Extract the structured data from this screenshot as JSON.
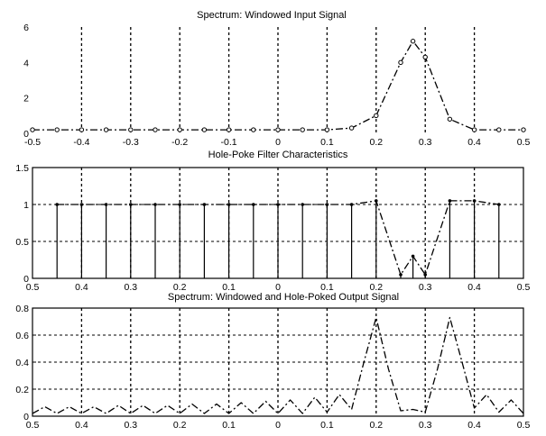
{
  "chart_data": [
    {
      "type": "line",
      "title": "Spectrum: Windowed Input Signal",
      "xlabel": "",
      "ylabel": "",
      "xlim": [
        -0.5,
        0.5
      ],
      "ylim": [
        0,
        6
      ],
      "grid": "vertical-dashed",
      "x_tick_labels": [
        "-0.5",
        "-0.4",
        "-0.3",
        "-0.2",
        "-0.1",
        "0",
        "0.1",
        "0.2",
        "0.3",
        "0.4",
        "0.5"
      ],
      "y_tick_labels": [
        "0",
        "2",
        "4",
        "6"
      ],
      "series": [
        {
          "style": "dash-dot line with circle markers",
          "color": "#000000",
          "x": [
            -0.5,
            -0.45,
            -0.4,
            -0.35,
            -0.3,
            -0.25,
            -0.2,
            -0.15,
            -0.1,
            -0.05,
            0,
            0.05,
            0.1,
            0.15,
            0.2,
            0.25,
            0.275,
            0.3,
            0.35,
            0.4,
            0.45,
            0.5
          ],
          "y": [
            0.2,
            0.2,
            0.2,
            0.2,
            0.2,
            0.2,
            0.2,
            0.2,
            0.2,
            0.2,
            0.2,
            0.2,
            0.2,
            0.3,
            1.0,
            4.0,
            5.2,
            4.3,
            0.8,
            0.2,
            0.2,
            0.2
          ]
        }
      ]
    },
    {
      "type": "line",
      "title": "Hole-Poke Filter Characteristics",
      "xlabel": "",
      "ylabel": "",
      "xlim": [
        -0.5,
        0.5
      ],
      "ylim": [
        0,
        1.5
      ],
      "grid": "dashed",
      "x_tick_labels": [
        "0.5",
        "0.4",
        "0.3",
        "0.2",
        "0.1",
        "0",
        "0.1",
        "0.2",
        "0.3",
        "0.4",
        "0.5"
      ],
      "y_tick_labels": [
        "0",
        "0.5",
        "1",
        "1.5"
      ],
      "series": [
        {
          "style": "dash-dot line with stem markers",
          "color": "#000000",
          "x": [
            -0.45,
            -0.4,
            -0.35,
            -0.3,
            -0.25,
            -0.2,
            -0.15,
            -0.1,
            -0.05,
            0,
            0.05,
            0.1,
            0.15,
            0.2,
            0.25,
            0.275,
            0.3,
            0.35,
            0.4,
            0.45
          ],
          "y": [
            1.0,
            1.0,
            1.0,
            1.0,
            1.0,
            1.0,
            1.0,
            1.0,
            1.0,
            1.0,
            1.0,
            1.0,
            1.0,
            1.05,
            0.05,
            0.3,
            0.05,
            1.05,
            1.05,
            1.0
          ]
        }
      ]
    },
    {
      "type": "line",
      "title": "Spectrum: Windowed and Hole-Poked Output Signal",
      "xlabel": "",
      "ylabel": "",
      "xlim": [
        -0.5,
        0.5
      ],
      "ylim": [
        0,
        0.8
      ],
      "grid": "dashed",
      "x_tick_labels": [
        "0.5",
        "0.4",
        "0.3",
        "0.2",
        "0.1",
        "0",
        "0.1",
        "0.2",
        "0.3",
        "0.4",
        "0.5"
      ],
      "y_tick_labels": [
        "0",
        "0.2",
        "0.4",
        "0.6",
        "0.8"
      ],
      "series": [
        {
          "style": "dash-dot line",
          "color": "#000000",
          "x": [
            -0.5,
            -0.475,
            -0.45,
            -0.425,
            -0.4,
            -0.375,
            -0.35,
            -0.325,
            -0.3,
            -0.275,
            -0.25,
            -0.225,
            -0.2,
            -0.175,
            -0.15,
            -0.125,
            -0.1,
            -0.075,
            -0.05,
            -0.025,
            0,
            0.025,
            0.05,
            0.075,
            0.1,
            0.125,
            0.15,
            0.175,
            0.2,
            0.225,
            0.25,
            0.275,
            0.3,
            0.325,
            0.35,
            0.375,
            0.4,
            0.425,
            0.45,
            0.475,
            0.5
          ],
          "y": [
            0.02,
            0.07,
            0.02,
            0.07,
            0.02,
            0.07,
            0.02,
            0.08,
            0.02,
            0.08,
            0.02,
            0.08,
            0.02,
            0.09,
            0.02,
            0.09,
            0.02,
            0.1,
            0.02,
            0.11,
            0.02,
            0.12,
            0.02,
            0.14,
            0.03,
            0.16,
            0.05,
            0.4,
            0.73,
            0.35,
            0.04,
            0.05,
            0.03,
            0.35,
            0.73,
            0.4,
            0.06,
            0.16,
            0.03,
            0.12,
            0.02
          ]
        }
      ]
    }
  ]
}
